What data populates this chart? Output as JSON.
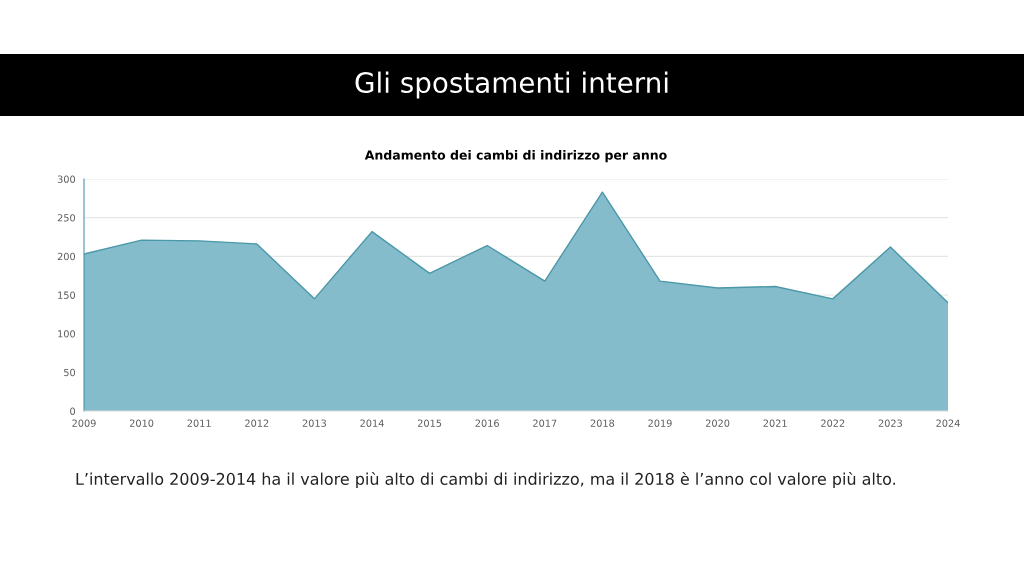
{
  "chart_data": {
    "type": "area",
    "title": "Gli spostamenti interni",
    "subtitle": "Andamento dei cambi di indirizzo per anno",
    "categories": [
      "2009",
      "2010",
      "2011",
      "2012",
      "2013",
      "2014",
      "2015",
      "2016",
      "2017",
      "2018",
      "2019",
      "2020",
      "2021",
      "2022",
      "2023",
      "2024"
    ],
    "series": [
      {
        "color": "#84bccb",
        "values": [
          203,
          221,
          220,
          216,
          145,
          232,
          178,
          214,
          168,
          283,
          168,
          159,
          161,
          145,
          212,
          140
        ]
      }
    ],
    "ylim": [
      0,
      300
    ],
    "yticks": [
      0,
      50,
      100,
      150,
      200,
      250,
      300
    ],
    "grid": "y",
    "annotations": [
      "L’intervallo 2009-2014 ha il valore più alto di cambi di indirizzo, ma il 2018 è l’anno col valore più alto."
    ]
  }
}
